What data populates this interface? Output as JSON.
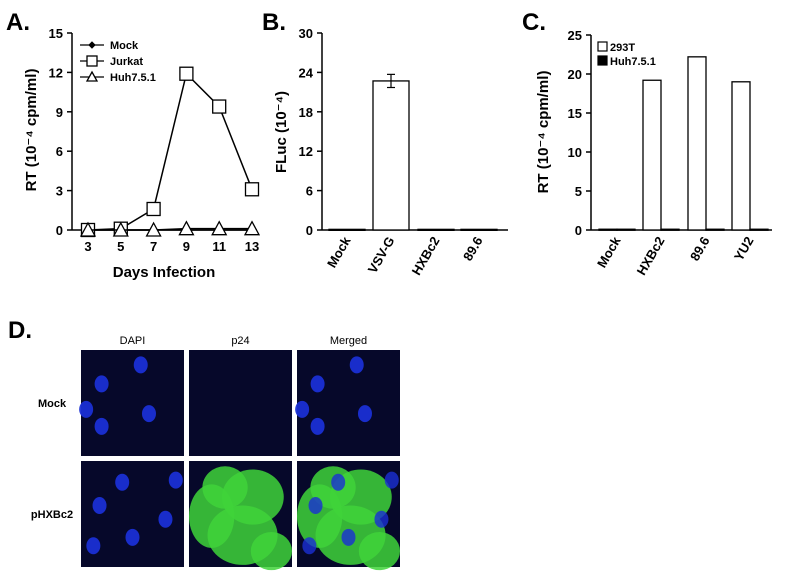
{
  "panels": {
    "A": {
      "label": "A.",
      "chart_data": {
        "type": "line",
        "xlabel": "Days Infection",
        "ylabel": "RT (10⁻⁴ cpm/ml)",
        "ylim": [
          0,
          15
        ],
        "yticks": [
          0,
          3,
          6,
          9,
          12,
          15
        ],
        "x": [
          3,
          5,
          7,
          9,
          11,
          13
        ],
        "legend_position": "top-left",
        "series": [
          {
            "name": "Mock",
            "marker": "diamond",
            "values": [
              0,
              0,
              0,
              0,
              0,
              0
            ]
          },
          {
            "name": "Jurkat",
            "marker": "square",
            "values": [
              0,
              0.1,
              1.6,
              11.9,
              9.4,
              3.1
            ]
          },
          {
            "name": "Huh7.5.1",
            "marker": "triangle",
            "values": [
              0,
              0,
              0,
              0.1,
              0.1,
              0.1
            ]
          }
        ]
      }
    },
    "B": {
      "label": "B.",
      "chart_data": {
        "type": "bar",
        "ylabel": "FLuc (10⁻⁴)",
        "ylim": [
          0,
          30
        ],
        "yticks": [
          0,
          6,
          12,
          18,
          24,
          30
        ],
        "categories": [
          "Mock",
          "VSV-G",
          "HXBc2",
          "89.6"
        ],
        "values": [
          0.1,
          22.7,
          0.1,
          0.1
        ],
        "errors": [
          0,
          1.0,
          0,
          0
        ]
      }
    },
    "C": {
      "label": "C.",
      "chart_data": {
        "type": "bar",
        "ylabel": "RT (10⁻⁴ cpm/ml)",
        "ylim": [
          0,
          25
        ],
        "yticks": [
          0,
          5,
          10,
          15,
          20,
          25
        ],
        "categories": [
          "Mock",
          "HXBc2",
          "89.6",
          "YU2"
        ],
        "legend_position": "top-left",
        "series": [
          {
            "name": "293T",
            "fill": "#ffffff",
            "values": [
              0.1,
              19.2,
              22.2,
              19.0
            ]
          },
          {
            "name": "Huh7.5.1",
            "fill": "#000000",
            "values": [
              0.1,
              0.1,
              0.1,
              0.1
            ]
          }
        ]
      }
    },
    "D": {
      "label": "D.",
      "columns": [
        "DAPI",
        "p24",
        "Merged"
      ],
      "rows": [
        "Mock",
        "pHXBc2"
      ]
    }
  },
  "colors": {
    "dapi": "#1a2fd4",
    "gfp": "#3fd43a",
    "background": "#06082a"
  }
}
